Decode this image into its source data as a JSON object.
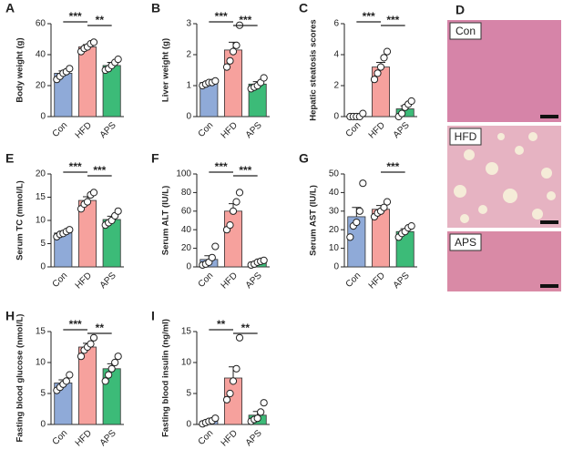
{
  "chart_data": [
    {
      "type": "bar",
      "panel": "A",
      "ylabel": "Body weight (g)",
      "categories": [
        "Con",
        "HFD",
        "APS"
      ],
      "values": [
        28,
        45,
        33
      ],
      "errors": [
        1.5,
        1.5,
        2
      ],
      "colors": [
        "#8faad8",
        "#f6a19d",
        "#3cbb78"
      ],
      "points": [
        [
          24,
          26,
          28,
          29,
          31
        ],
        [
          42,
          44,
          45,
          47,
          48
        ],
        [
          30,
          31,
          33,
          35,
          37
        ]
      ],
      "ylim": [
        0,
        60
      ],
      "yticks": [
        0,
        20,
        40,
        60
      ],
      "significance": [
        {
          "label": "***",
          "pair": [
            "Con",
            "HFD"
          ]
        },
        {
          "label": "**",
          "pair": [
            "HFD",
            "APS"
          ]
        }
      ]
    },
    {
      "type": "bar",
      "panel": "B",
      "ylabel": "Liver weight (g)",
      "categories": [
        "Con",
        "HFD",
        "APS"
      ],
      "values": [
        1.1,
        2.15,
        1.05
      ],
      "errors": [
        0.05,
        0.25,
        0.08
      ],
      "colors": [
        "#8faad8",
        "#f6a19d",
        "#3cbb78"
      ],
      "points": [
        [
          1.0,
          1.05,
          1.1,
          1.1,
          1.15
        ],
        [
          1.6,
          1.8,
          2.1,
          2.3,
          2.95
        ],
        [
          0.9,
          0.95,
          1.0,
          1.1,
          1.25
        ]
      ],
      "ylim": [
        0,
        3
      ],
      "yticks": [
        0,
        1,
        2,
        3
      ],
      "significance": [
        {
          "label": "***",
          "pair": [
            "Con",
            "HFD"
          ]
        },
        {
          "label": "***",
          "pair": [
            "HFD",
            "APS"
          ]
        }
      ]
    },
    {
      "type": "bar",
      "panel": "C",
      "ylabel": "Hepatic steatosis scores",
      "categories": [
        "Con",
        "HFD",
        "APS"
      ],
      "values": [
        0,
        3.2,
        0.5
      ],
      "errors": [
        0,
        0.3,
        0.2
      ],
      "colors": [
        "#8faad8",
        "#f6a19d",
        "#3cbb78"
      ],
      "points": [
        [
          0,
          0,
          0,
          0,
          0.2
        ],
        [
          2.4,
          2.8,
          3.2,
          3.8,
          4.2
        ],
        [
          0,
          0.2,
          0.6,
          0.8,
          1
        ]
      ],
      "ylim": [
        0,
        6
      ],
      "yticks": [
        0,
        2,
        4,
        6
      ],
      "significance": [
        {
          "label": "***",
          "pair": [
            "Con",
            "HFD"
          ]
        },
        {
          "label": "***",
          "pair": [
            "HFD",
            "APS"
          ]
        }
      ]
    },
    {
      "type": "bar",
      "panel": "E",
      "ylabel": "Serum TC (mmol/L)",
      "categories": [
        "Con",
        "HFD",
        "APS"
      ],
      "values": [
        7.3,
        14.3,
        10.2
      ],
      "errors": [
        0.4,
        0.8,
        0.7
      ],
      "colors": [
        "#8faad8",
        "#f6a19d",
        "#3cbb78"
      ],
      "points": [
        [
          6.5,
          7,
          7.2,
          7.6,
          8
        ],
        [
          12.5,
          13.5,
          14,
          15.5,
          16
        ],
        [
          9,
          9.5,
          10,
          11,
          12
        ]
      ],
      "ylim": [
        0,
        20
      ],
      "yticks": [
        0,
        5,
        10,
        15,
        20
      ],
      "significance": [
        {
          "label": "***",
          "pair": [
            "Con",
            "HFD"
          ]
        },
        {
          "label": "***",
          "pair": [
            "HFD",
            "APS"
          ]
        }
      ]
    },
    {
      "type": "bar",
      "panel": "F",
      "ylabel": "Serum ALT (IU/L)",
      "categories": [
        "Con",
        "HFD",
        "APS"
      ],
      "values": [
        8,
        60,
        5
      ],
      "errors": [
        4,
        8,
        1
      ],
      "colors": [
        "#8faad8",
        "#f6a19d",
        "#3cbb78"
      ],
      "points": [
        [
          2,
          3,
          5,
          10,
          22
        ],
        [
          40,
          45,
          60,
          70,
          80
        ],
        [
          2,
          3,
          5,
          6,
          7
        ]
      ],
      "ylim": [
        0,
        100
      ],
      "yticks": [
        0,
        20,
        40,
        60,
        80,
        100
      ],
      "significance": [
        {
          "label": "***",
          "pair": [
            "Con",
            "HFD"
          ]
        },
        {
          "label": "***",
          "pair": [
            "HFD",
            "APS"
          ]
        }
      ]
    },
    {
      "type": "bar",
      "panel": "G",
      "ylabel": "Serum AST (IU/L)",
      "categories": [
        "Con",
        "HFD",
        "APS"
      ],
      "values": [
        27,
        31,
        19
      ],
      "errors": [
        5,
        2,
        1.5
      ],
      "colors": [
        "#8faad8",
        "#f6a19d",
        "#3cbb78"
      ],
      "points": [
        [
          16,
          22,
          24,
          30,
          45
        ],
        [
          27,
          29,
          30,
          32,
          35
        ],
        [
          16,
          18,
          19,
          21,
          22
        ]
      ],
      "ylim": [
        0,
        50
      ],
      "yticks": [
        0,
        10,
        20,
        30,
        40,
        50
      ],
      "significance": [
        {
          "label": "***",
          "pair": [
            "HFD",
            "APS"
          ]
        }
      ]
    },
    {
      "type": "bar",
      "panel": "H",
      "ylabel": "Fasting blood glucose (nmol/L)",
      "categories": [
        "Con",
        "HFD",
        "APS"
      ],
      "values": [
        6.7,
        12.5,
        9
      ],
      "errors": [
        0.5,
        0.6,
        0.8
      ],
      "colors": [
        "#8faad8",
        "#f6a19d",
        "#3cbb78"
      ],
      "points": [
        [
          5.5,
          6,
          6.5,
          7,
          8
        ],
        [
          11,
          12,
          12.5,
          13,
          14
        ],
        [
          7,
          8,
          9,
          10,
          11
        ]
      ],
      "ylim": [
        0,
        15
      ],
      "yticks": [
        0,
        5,
        10,
        15
      ],
      "significance": [
        {
          "label": "***",
          "pair": [
            "Con",
            "HFD"
          ]
        },
        {
          "label": "**",
          "pair": [
            "HFD",
            "APS"
          ]
        }
      ]
    },
    {
      "type": "bar",
      "panel": "I",
      "ylabel": "Fasting blood insulin (ng/ml)",
      "categories": [
        "Con",
        "HFD",
        "APS"
      ],
      "values": [
        0.5,
        7.5,
        1.5
      ],
      "errors": [
        0.2,
        1.8,
        0.6
      ],
      "colors": [
        "#8faad8",
        "#f6a19d",
        "#3cbb78"
      ],
      "points": [
        [
          0.1,
          0.3,
          0.5,
          0.6,
          1
        ],
        [
          4,
          5,
          7,
          9,
          14
        ],
        [
          0.5,
          0.8,
          1,
          2,
          3.5
        ]
      ],
      "ylim": [
        0,
        15
      ],
      "yticks": [
        0,
        5,
        10,
        15
      ],
      "significance": [
        {
          "label": "**",
          "pair": [
            "Con",
            "HFD"
          ]
        },
        {
          "label": "**",
          "pair": [
            "HFD",
            "APS"
          ]
        }
      ]
    }
  ],
  "image_panel": {
    "panel": "D",
    "captions": [
      "Con",
      "HFD",
      "APS"
    ]
  }
}
